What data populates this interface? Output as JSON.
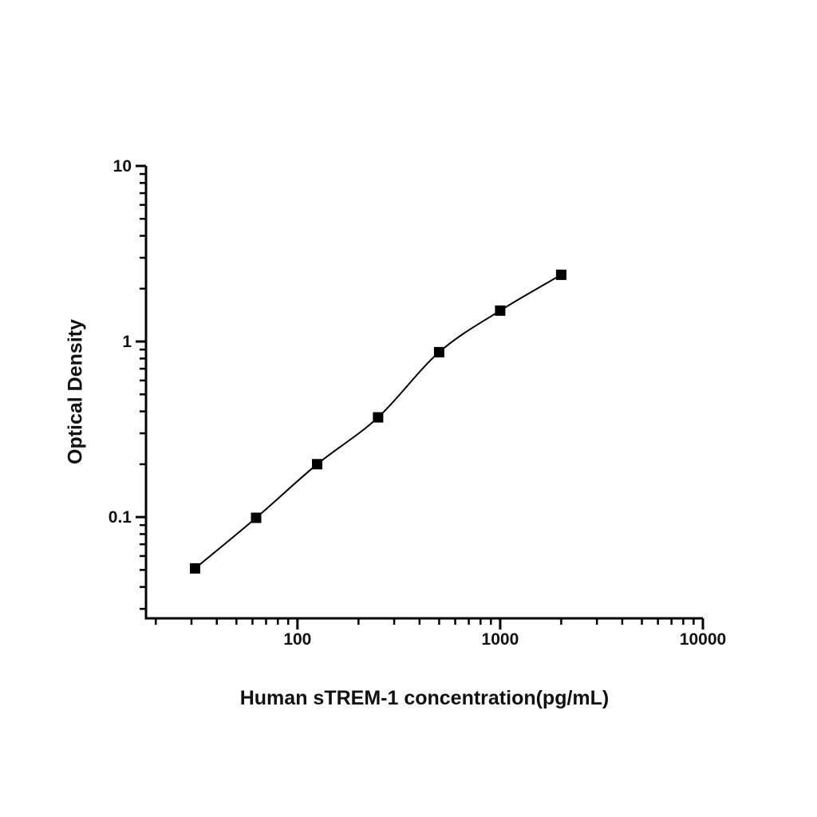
{
  "figure": {
    "background": "#ffffff",
    "title": ""
  },
  "chart_data": {
    "type": "scatter",
    "subtype": "standard-curve-with-smooth-fit-line",
    "title": "",
    "xlabel": "Human sTREM-1 concentration(pg/mL)",
    "ylabel": "Optical Density",
    "xscale": "log",
    "yscale": "log",
    "xlim": [
      17.9,
      10000
    ],
    "ylim": [
      0.0265,
      10
    ],
    "x": [
      31.25,
      62.5,
      125,
      250,
      500,
      1000,
      2000
    ],
    "y": [
      0.051,
      0.099,
      0.2,
      0.37,
      0.87,
      1.5,
      2.4
    ],
    "x_ticks": [
      {
        "value": 100,
        "label": "100"
      },
      {
        "value": 1000,
        "label": "1000"
      },
      {
        "value": 10000,
        "label": "10000"
      }
    ],
    "y_ticks": [
      {
        "value": 0.1,
        "label": "0.1"
      },
      {
        "value": 1,
        "label": "1"
      },
      {
        "value": 10,
        "label": "10"
      }
    ],
    "minor_ticks": "log-mantissas-2-to-9",
    "grid": false,
    "legend": "none",
    "marker": "filled-square",
    "marker_size_px": 13,
    "colors": {
      "axis": "#000000",
      "curve": "#000000",
      "marker": "#000000",
      "text": "#111111",
      "background": "#ffffff"
    }
  }
}
